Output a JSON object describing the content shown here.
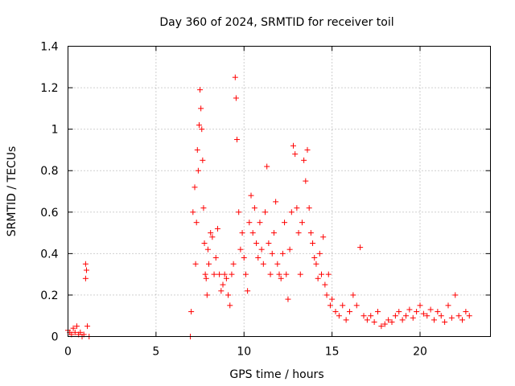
{
  "chart_data": {
    "type": "scatter",
    "title": "Day 360 of 2024, SRMTID for receiver toil",
    "xlabel": "GPS time / hours",
    "ylabel": "SRMTID / TECUs",
    "xlim": [
      0,
      24
    ],
    "ylim": [
      0,
      1.4
    ],
    "xticks": [
      0,
      5,
      10,
      15,
      20
    ],
    "xtick_labels": [
      "0",
      "5",
      "10",
      "15",
      "20"
    ],
    "yticks": [
      0,
      0.2,
      0.4,
      0.6,
      0.8,
      1.0,
      1.2,
      1.4
    ],
    "ytick_labels": [
      "0",
      "0.2",
      "0.4",
      "0.6",
      "0.8",
      "1",
      "1.2",
      "1.4"
    ],
    "grid": true,
    "marker": "+",
    "series": [
      {
        "name": "SRMTID",
        "color": "#ff0000",
        "x": [
          0.0,
          0.1,
          0.2,
          0.3,
          0.4,
          0.5,
          0.6,
          0.7,
          0.8,
          0.9,
          1.0,
          1.0,
          1.05,
          1.1,
          1.2,
          6.95,
          7.0,
          7.1,
          7.2,
          7.25,
          7.3,
          7.35,
          7.4,
          7.45,
          7.5,
          7.55,
          7.6,
          7.65,
          7.7,
          7.75,
          7.8,
          7.85,
          7.9,
          7.95,
          8.0,
          8.1,
          8.2,
          8.3,
          8.4,
          8.5,
          8.6,
          8.7,
          8.8,
          8.9,
          9.0,
          9.1,
          9.2,
          9.3,
          9.4,
          9.5,
          9.55,
          9.6,
          9.7,
          9.8,
          9.9,
          10.0,
          10.1,
          10.2,
          10.3,
          10.4,
          10.5,
          10.6,
          10.7,
          10.8,
          10.9,
          11.0,
          11.1,
          11.2,
          11.3,
          11.4,
          11.5,
          11.6,
          11.7,
          11.8,
          11.9,
          12.0,
          12.1,
          12.2,
          12.3,
          12.4,
          12.5,
          12.6,
          12.7,
          12.8,
          12.9,
          13.0,
          13.1,
          13.2,
          13.3,
          13.4,
          13.5,
          13.6,
          13.7,
          13.8,
          13.9,
          14.0,
          14.1,
          14.2,
          14.3,
          14.4,
          14.5,
          14.6,
          14.7,
          14.8,
          14.9,
          15.0,
          15.2,
          15.4,
          15.6,
          15.8,
          16.0,
          16.2,
          16.4,
          16.6,
          16.8,
          17.0,
          17.2,
          17.4,
          17.6,
          17.8,
          18.0,
          18.2,
          18.4,
          18.6,
          18.8,
          19.0,
          19.2,
          19.4,
          19.6,
          19.8,
          20.0,
          20.2,
          20.4,
          20.6,
          20.8,
          21.0,
          21.2,
          21.4,
          21.6,
          21.8,
          22.0,
          22.2,
          22.4,
          22.6,
          22.8
        ],
        "y": [
          0.03,
          0.02,
          0.01,
          0.04,
          0.02,
          0.05,
          0.01,
          0.02,
          0.0,
          0.01,
          0.35,
          0.28,
          0.32,
          0.05,
          0.0,
          0.0,
          0.12,
          0.6,
          0.72,
          0.35,
          0.55,
          0.9,
          0.8,
          1.02,
          1.19,
          1.1,
          1.0,
          0.85,
          0.62,
          0.45,
          0.3,
          0.28,
          0.2,
          0.42,
          0.35,
          0.5,
          0.48,
          0.3,
          0.38,
          0.52,
          0.3,
          0.22,
          0.25,
          0.3,
          0.28,
          0.2,
          0.15,
          0.3,
          0.35,
          1.25,
          1.15,
          0.95,
          0.6,
          0.42,
          0.5,
          0.38,
          0.3,
          0.22,
          0.55,
          0.68,
          0.5,
          0.62,
          0.45,
          0.38,
          0.55,
          0.42,
          0.35,
          0.6,
          0.82,
          0.45,
          0.3,
          0.4,
          0.5,
          0.65,
          0.35,
          0.3,
          0.28,
          0.4,
          0.55,
          0.3,
          0.18,
          0.42,
          0.6,
          0.92,
          0.88,
          0.62,
          0.5,
          0.3,
          0.55,
          0.85,
          0.75,
          0.9,
          0.62,
          0.5,
          0.45,
          0.38,
          0.35,
          0.28,
          0.4,
          0.3,
          0.48,
          0.25,
          0.2,
          0.3,
          0.15,
          0.18,
          0.12,
          0.1,
          0.15,
          0.08,
          0.12,
          0.2,
          0.15,
          0.43,
          0.1,
          0.08,
          0.1,
          0.07,
          0.12,
          0.05,
          0.06,
          0.08,
          0.07,
          0.1,
          0.12,
          0.08,
          0.1,
          0.13,
          0.09,
          0.12,
          0.15,
          0.11,
          0.1,
          0.13,
          0.08,
          0.12,
          0.1,
          0.07,
          0.15,
          0.09,
          0.2,
          0.1,
          0.08,
          0.12,
          0.1
        ]
      }
    ]
  }
}
